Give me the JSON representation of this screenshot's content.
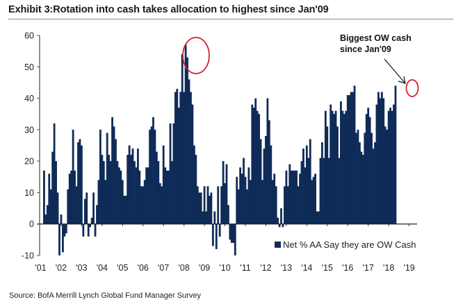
{
  "title": "Exhibit 3:Rotation into cash takes allocation to highest since Jan'09",
  "source": "Source: BofA Merrill Lynch Global Fund Manager Survey",
  "colors": {
    "bar": "#0f2b57",
    "highlight_circle": "#d11f2a",
    "axis": "#555555"
  },
  "chart_data": {
    "type": "bar",
    "title": "Exhibit 3:Rotation into cash takes allocation to highest since Jan'09",
    "xlabel": "",
    "ylabel": "",
    "ylim": [
      -10,
      60
    ],
    "yticks": [
      -10,
      0,
      10,
      20,
      30,
      40,
      50,
      60
    ],
    "ytick_labels": [
      "-10",
      "0",
      "10",
      "20",
      "30",
      "40",
      "50",
      "60"
    ],
    "xtick_labels": [
      "'01",
      "'02",
      "'03",
      "'04",
      "'05",
      "'06",
      "'07",
      "'08",
      "'09",
      "'10",
      "'11",
      "'12",
      "'13",
      "'14",
      "'15",
      "'16",
      "'17",
      "'18",
      "'19"
    ],
    "frequency": "monthly",
    "start": "2001-01",
    "grid": false,
    "legend": {
      "position": "bottom-right",
      "entries": [
        "Net % AA Say they are OW Cash"
      ]
    },
    "series": [
      {
        "name": "Net % AA Say they are OW Cash",
        "values": [
          17,
          3,
          6,
          16,
          11,
          23,
          32,
          20,
          10,
          -10,
          3,
          -9,
          -4,
          -3,
          11,
          16,
          17,
          30,
          17,
          12,
          26,
          27,
          25,
          -4,
          8,
          10,
          -4,
          -1,
          2,
          10,
          -4,
          6,
          14,
          30,
          22,
          20,
          14,
          29,
          22,
          20,
          34,
          31,
          27,
          20,
          18,
          17,
          14,
          9,
          9,
          22,
          25,
          22,
          24,
          20,
          18,
          24,
          17,
          12,
          12,
          14,
          18,
          18,
          30,
          31,
          34,
          30,
          23,
          20,
          13,
          12,
          25,
          18,
          17,
          17,
          32,
          20,
          32,
          42,
          43,
          37,
          42,
          54,
          42,
          57,
          53,
          46,
          42,
          38,
          25,
          22,
          12,
          10,
          10,
          4,
          12,
          4,
          12,
          9,
          10,
          -7,
          4,
          -8,
          12,
          -4,
          12,
          20,
          13,
          19,
          6,
          -5,
          -6,
          -6,
          -10,
          15,
          11,
          18,
          16,
          21,
          15,
          11,
          18,
          14,
          38,
          37,
          40,
          36,
          35,
          27,
          14,
          24,
          28,
          40,
          33,
          25,
          14,
          16,
          12,
          2,
          -1,
          5,
          -1,
          12,
          17,
          12,
          19,
          17,
          17,
          17,
          17,
          12,
          16,
          20,
          24,
          18,
          25,
          21,
          27,
          14,
          15,
          16,
          4,
          4,
          21,
          26,
          21,
          36,
          31,
          21,
          38,
          36,
          35,
          36,
          31,
          21,
          39,
          36,
          35,
          36,
          41,
          41,
          42,
          42,
          44,
          29,
          30,
          26,
          23,
          22,
          29,
          35,
          37,
          34,
          29,
          24,
          26,
          38,
          42,
          40,
          42,
          40,
          31,
          30,
          36,
          37,
          36,
          38,
          44
        ]
      }
    ],
    "annotations": [
      {
        "text_line1": "Biggest OW cash",
        "text_line2": "since Jan'09"
      }
    ]
  }
}
